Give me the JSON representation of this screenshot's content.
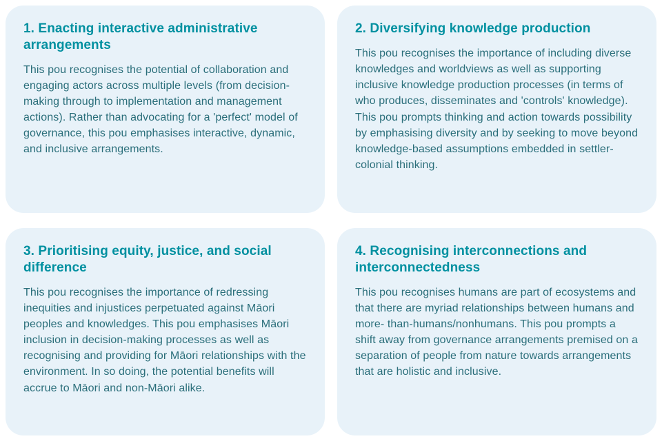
{
  "layout": {
    "cols": 2,
    "rows": 2,
    "gap_row": 22,
    "gap_col": 18
  },
  "style": {
    "card_bg": "#E8F2F9",
    "card_radius": 26,
    "title_color": "#0090A0",
    "title_fontsize": 19,
    "title_weight": "bold",
    "body_color": "#2A6E7A",
    "body_fontsize": 16,
    "body_lineheight": 1.45,
    "page_bg": "#ffffff"
  },
  "cards": [
    {
      "title": "1. Enacting interactive administrative arrangements",
      "body": "This pou recognises the potential of collaboration and engaging actors across multiple levels (from decision-making through to implementation and management actions). Rather than advocating for a 'perfect' model of governance, this pou emphasises interactive, dynamic, and inclusive arrangements."
    },
    {
      "title": "2. Diversifying knowledge production",
      "body": "This pou recognises the importance of including diverse knowledges and worldviews as well as supporting inclusive knowledge production processes (in terms of who produces, disseminates and 'controls' knowledge). This pou prompts thinking and action towards possibility by emphasising diversity and by seeking to move beyond knowledge-based assumptions embedded in settler-colonial thinking."
    },
    {
      "title": "3. Prioritising equity, justice, and social difference",
      "body": "This pou recognises the importance of redressing inequities and injustices perpetuated against Māori peoples and knowledges. This pou emphasises Māori inclusion in decision-making processes as well as recognising and providing for Māori relationships with the environment. In so doing, the potential benefits will accrue to Māori and non-Māori alike."
    },
    {
      "title": "4. Recognising interconnections and interconnectedness",
      "body": "This pou recognises humans are part of ecosystems and that there are myriad relationships between humans and more- than-humans/nonhumans. This pou prompts a shift away from governance arrangements premised on a separation of people from nature towards arrangements that are holistic and inclusive."
    }
  ]
}
